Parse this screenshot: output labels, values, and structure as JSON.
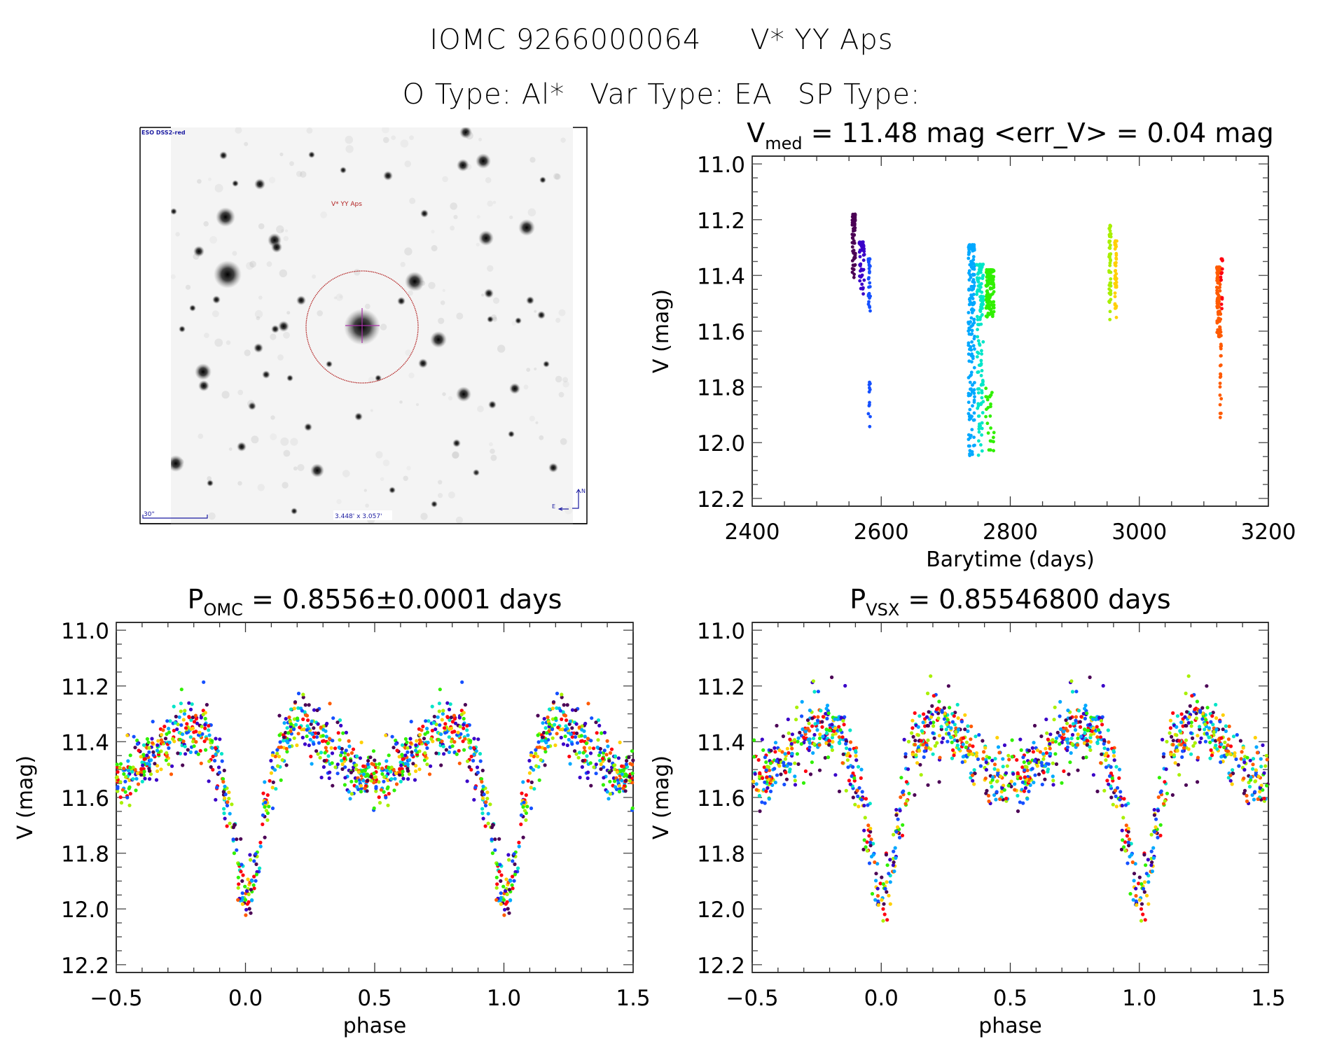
{
  "header": {
    "object_id": "IOMC 9266000064",
    "object_name": "V* YY Aps",
    "otype_label": "O Type: Al*",
    "vartype_label": "Var Type: EA",
    "sptype_label": "SP Type:"
  },
  "image_panel": {
    "survey_label": "ESO DSS2-red",
    "target_label": "V* YY Aps",
    "scale_label": "30\"",
    "fov_label": "3.448' x 3.057'",
    "compass_north": "N",
    "compass_east": "E",
    "colors": {
      "marker": "#b22222",
      "labels": "#1a1aa0",
      "crosshair": "#aa33aa"
    }
  },
  "season_colors": [
    "#4b0055",
    "#3a00c8",
    "#1550ff",
    "#00a8ff",
    "#00e5c8",
    "#30f000",
    "#a8f000",
    "#ffd000",
    "#ff5a00",
    "#ff0010"
  ],
  "chart_data": [
    {
      "id": "lightcurve",
      "type": "scatter",
      "title_main": "V",
      "title_sub": "med",
      "title_rest": " = 11.48 mag <err_V> = 0.04 mag",
      "xlabel": "Barytime (days)",
      "ylabel": "V (mag)",
      "xlim": [
        2400,
        3200
      ],
      "ylim": [
        12.228,
        10.972
      ],
      "y_inverted": true,
      "xticks": [
        2400,
        2600,
        2800,
        3000,
        3200
      ],
      "xtick_labels": [
        "2400",
        "2600",
        "2800",
        "3000",
        "3200"
      ],
      "x_minor_step": 50,
      "yticks": [
        11.0,
        11.2,
        11.4,
        11.6,
        11.8,
        12.0,
        12.2
      ],
      "ytick_labels": [
        "11.0",
        "11.2",
        "11.4",
        "11.6",
        "11.8",
        "12.0",
        "12.2"
      ],
      "y_minor_step": 0.05,
      "grid": false,
      "seasons": [
        {
          "color_index": 0,
          "t": [
            2555,
            2560
          ],
          "v_range": [
            11.18,
            11.42
          ],
          "n": 60
        },
        {
          "color_index": 1,
          "t": [
            2566,
            2574
          ],
          "v_range": [
            11.28,
            11.48
          ],
          "n": 45
        },
        {
          "color_index": 2,
          "t": [
            2580,
            2583
          ],
          "v_range": [
            11.34,
            11.54
          ],
          "n": 30
        },
        {
          "color_index": 2,
          "t": [
            2580,
            2583
          ],
          "v_range": [
            11.78,
            11.96
          ],
          "n": 12
        },
        {
          "color_index": 3,
          "t": [
            2735,
            2745
          ],
          "v_range": [
            11.29,
            12.08
          ],
          "n": 170
        },
        {
          "color_index": 4,
          "t": [
            2748,
            2758
          ],
          "v_range": [
            11.36,
            12.05
          ],
          "n": 120
        },
        {
          "color_index": 5,
          "t": [
            2762,
            2775
          ],
          "v_range": [
            11.38,
            11.55
          ],
          "n": 130
        },
        {
          "color_index": 5,
          "t": [
            2762,
            2775
          ],
          "v_range": [
            11.8,
            12.05
          ],
          "n": 25
        },
        {
          "color_index": 6,
          "t": [
            2953,
            2956
          ],
          "v_range": [
            11.22,
            11.56
          ],
          "n": 50
        },
        {
          "color_index": 7,
          "t": [
            2962,
            2965
          ],
          "v_range": [
            11.27,
            11.57
          ],
          "n": 40
        },
        {
          "color_index": 8,
          "t": [
            3120,
            3126
          ],
          "v_range": [
            11.37,
            11.62
          ],
          "n": 90
        },
        {
          "color_index": 8,
          "t": [
            3125,
            3127
          ],
          "v_range": [
            11.6,
            11.93
          ],
          "n": 22
        },
        {
          "color_index": 9,
          "t": [
            3126,
            3129
          ],
          "v_range": [
            11.34,
            11.56
          ],
          "n": 15
        }
      ]
    },
    {
      "id": "phase_omc",
      "type": "scatter",
      "title_main": "P",
      "title_sub": "OMC",
      "title_rest": " = 0.8556±0.0001 days",
      "xlabel": "phase",
      "ylabel": "V (mag)",
      "xlim": [
        -0.5,
        1.5
      ],
      "ylim": [
        12.228,
        10.972
      ],
      "y_inverted": true,
      "xticks": [
        -0.5,
        0.0,
        0.5,
        1.0,
        1.5
      ],
      "xtick_labels": [
        "−0.5",
        "0.0",
        "0.5",
        "1.0",
        "1.5"
      ],
      "x_minor_step": 0.1,
      "yticks": [
        11.0,
        11.2,
        11.4,
        11.6,
        11.8,
        12.0,
        12.2
      ],
      "ytick_labels": [
        "11.0",
        "11.2",
        "11.4",
        "11.6",
        "11.8",
        "12.0",
        "12.2"
      ],
      "y_minor_step": 0.05,
      "grid": false,
      "model_curve": {
        "phase": [
          -0.5,
          -0.42,
          -0.35,
          -0.28,
          -0.22,
          -0.17,
          -0.12,
          -0.08,
          -0.05,
          -0.02,
          0.0,
          0.02,
          0.05,
          0.08,
          0.12,
          0.17,
          0.22,
          0.28,
          0.35,
          0.42,
          0.5
        ],
        "v": [
          11.54,
          11.5,
          11.44,
          11.38,
          11.34,
          11.36,
          11.45,
          11.58,
          11.72,
          11.88,
          11.98,
          11.93,
          11.8,
          11.6,
          11.45,
          11.36,
          11.33,
          11.36,
          11.44,
          11.5,
          11.54
        ]
      },
      "scatter_mag": 0.05,
      "n_points": 700
    },
    {
      "id": "phase_vsx",
      "type": "scatter",
      "title_main": "P",
      "title_sub": "VSX",
      "title_rest": " = 0.85546800 days",
      "xlabel": "phase",
      "ylabel": "V (mag)",
      "xlim": [
        -0.5,
        1.5
      ],
      "ylim": [
        12.228,
        10.972
      ],
      "y_inverted": true,
      "xticks": [
        -0.5,
        0.0,
        0.5,
        1.0,
        1.5
      ],
      "xtick_labels": [
        "−0.5",
        "0.0",
        "0.5",
        "1.0",
        "1.5"
      ],
      "x_minor_step": 0.1,
      "yticks": [
        11.0,
        11.2,
        11.4,
        11.6,
        11.8,
        12.0,
        12.2
      ],
      "ytick_labels": [
        "11.0",
        "11.2",
        "11.4",
        "11.6",
        "11.8",
        "12.0",
        "12.2"
      ],
      "y_minor_step": 0.05,
      "grid": false,
      "model_curve": {
        "phase": [
          -0.5,
          -0.42,
          -0.35,
          -0.28,
          -0.22,
          -0.17,
          -0.12,
          -0.08,
          -0.05,
          -0.02,
          0.0,
          0.02,
          0.05,
          0.08,
          0.12,
          0.17,
          0.22,
          0.28,
          0.35,
          0.42,
          0.5
        ],
        "v": [
          11.54,
          11.5,
          11.44,
          11.38,
          11.34,
          11.36,
          11.45,
          11.58,
          11.72,
          11.88,
          11.98,
          11.93,
          11.8,
          11.6,
          11.45,
          11.36,
          11.33,
          11.36,
          11.44,
          11.5,
          11.54
        ]
      },
      "scatter_mag": 0.055,
      "n_points": 700
    }
  ]
}
